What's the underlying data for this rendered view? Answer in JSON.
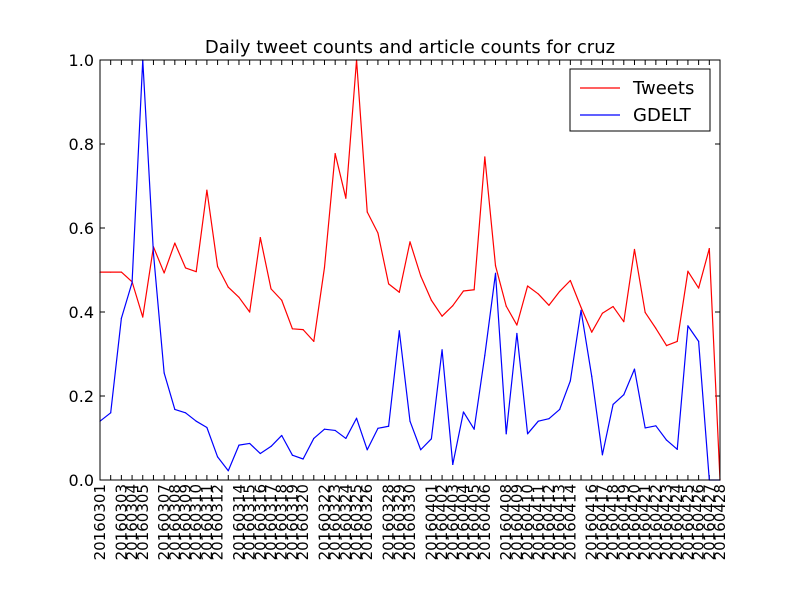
{
  "chart_data": {
    "type": "line",
    "title": "Daily tweet counts and article counts for cruz",
    "xlabel": "",
    "ylabel": "",
    "ylim": [
      0,
      1
    ],
    "yticks": [
      "0.0",
      "0.2",
      "0.4",
      "0.6",
      "0.8",
      "1.0"
    ],
    "legend_position": "top-right",
    "grid": false,
    "x": [
      "20160301",
      "20160302",
      "20160303",
      "20160304",
      "20160305",
      "20160306",
      "20160307",
      "20160308",
      "20160309",
      "20160310",
      "20160311",
      "20160312",
      "20160313",
      "20160314",
      "20160315",
      "20160316",
      "20160317",
      "20160318",
      "20160319",
      "20160320",
      "20160321",
      "20160322",
      "20160323",
      "20160324",
      "20160325",
      "20160326",
      "20160327",
      "20160328",
      "20160329",
      "20160330",
      "20160331",
      "20160401",
      "20160402",
      "20160403",
      "20160404",
      "20160405",
      "20160406",
      "20160407",
      "20160408",
      "20160409",
      "20160410",
      "20160411",
      "20160412",
      "20160413",
      "20160414",
      "20160415",
      "20160416",
      "20160417",
      "20160418",
      "20160419",
      "20160420",
      "20160421",
      "20160422",
      "20160423",
      "20160424",
      "20160425",
      "20160426",
      "20160427",
      "20160428"
    ],
    "x_tick_labels": [
      "20160301",
      "20160303",
      "20160304",
      "20160305",
      "20160307",
      "20160308",
      "20160309",
      "20160310",
      "20160311",
      "20160312",
      "20160314",
      "20160315",
      "20160316",
      "20160317",
      "20160318",
      "20160319",
      "20160320",
      "20160322",
      "20160323",
      "20160324",
      "20160325",
      "20160326",
      "20160328",
      "20160329",
      "20160330",
      "20160401",
      "20160402",
      "20160403",
      "20160404",
      "20160405",
      "20160406",
      "20160408",
      "20160409",
      "20160410",
      "20160411",
      "20160412",
      "20160413",
      "20160414",
      "20160416",
      "20160417",
      "20160418",
      "20160419",
      "20160420",
      "20160421",
      "20160422",
      "20160423",
      "20160424",
      "20160425",
      "20160426",
      "20160427",
      "20160428"
    ],
    "series": [
      {
        "name": "Tweets",
        "color": "#ff0000",
        "values": [
          0.495,
          0.495,
          0.495,
          0.472,
          0.388,
          0.555,
          0.493,
          0.564,
          0.505,
          0.496,
          0.69,
          0.508,
          0.459,
          0.435,
          0.4,
          0.577,
          0.455,
          0.428,
          0.36,
          0.358,
          0.33,
          0.506,
          0.777,
          0.671,
          1.0,
          0.638,
          0.588,
          0.467,
          0.447,
          0.567,
          0.486,
          0.428,
          0.39,
          0.415,
          0.45,
          0.453,
          0.769,
          0.51,
          0.414,
          0.369,
          0.462,
          0.443,
          0.416,
          0.449,
          0.475,
          0.411,
          0.352,
          0.397,
          0.413,
          0.377,
          0.549,
          0.399,
          0.361,
          0.32,
          0.33,
          0.497,
          0.457,
          0.551,
          0.0
        ]
      },
      {
        "name": "GDELT",
        "color": "#0000ff",
        "values": [
          0.14,
          0.16,
          0.385,
          0.47,
          1.0,
          0.54,
          0.255,
          0.168,
          0.16,
          0.14,
          0.125,
          0.055,
          0.022,
          0.083,
          0.087,
          0.063,
          0.08,
          0.106,
          0.059,
          0.05,
          0.099,
          0.121,
          0.118,
          0.099,
          0.147,
          0.072,
          0.123,
          0.128,
          0.355,
          0.14,
          0.072,
          0.098,
          0.31,
          0.037,
          0.162,
          0.121,
          0.297,
          0.492,
          0.11,
          0.349,
          0.11,
          0.14,
          0.146,
          0.168,
          0.236,
          0.404,
          0.247,
          0.06,
          0.18,
          0.203,
          0.264,
          0.124,
          0.129,
          0.095,
          0.073,
          0.367,
          0.33,
          0.0,
          0.0
        ]
      }
    ]
  }
}
